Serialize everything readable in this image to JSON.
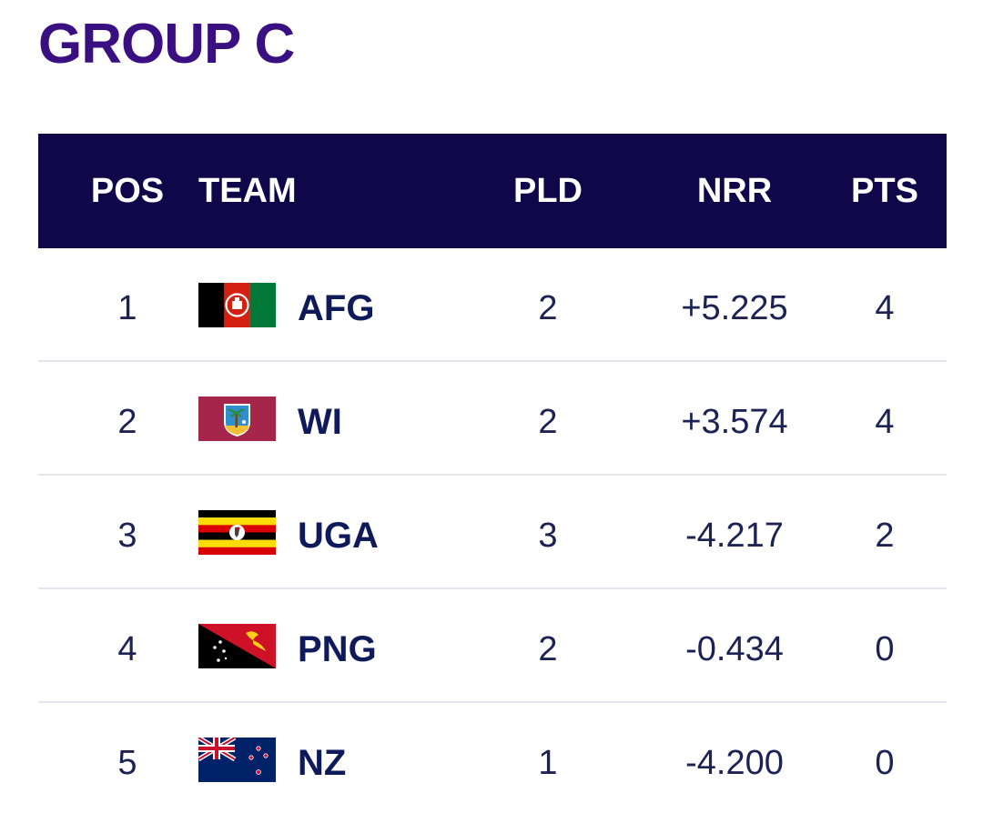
{
  "title": "GROUP C",
  "columns": {
    "pos": "POS",
    "team": "TEAM",
    "pld": "PLD",
    "nrr": "NRR",
    "pts": "PTS"
  },
  "rows": [
    {
      "pos": "1",
      "team": "AFG",
      "pld": "2",
      "nrr": "+5.225",
      "pts": "4",
      "flag": "afghanistan-flag-icon"
    },
    {
      "pos": "2",
      "team": "WI",
      "pld": "2",
      "nrr": "+3.574",
      "pts": "4",
      "flag": "west-indies-flag-icon"
    },
    {
      "pos": "3",
      "team": "UGA",
      "pld": "3",
      "nrr": "-4.217",
      "pts": "2",
      "flag": "uganda-flag-icon"
    },
    {
      "pos": "4",
      "team": "PNG",
      "pld": "2",
      "nrr": "-0.434",
      "pts": "0",
      "flag": "papua-new-guinea-flag-icon"
    },
    {
      "pos": "5",
      "team": "NZ",
      "pld": "1",
      "nrr": "-4.200",
      "pts": "0",
      "flag": "new-zealand-flag-icon"
    }
  ],
  "colors": {
    "title": "#3a0f82",
    "header_bg": "#10064a",
    "text": "#1c2354"
  }
}
